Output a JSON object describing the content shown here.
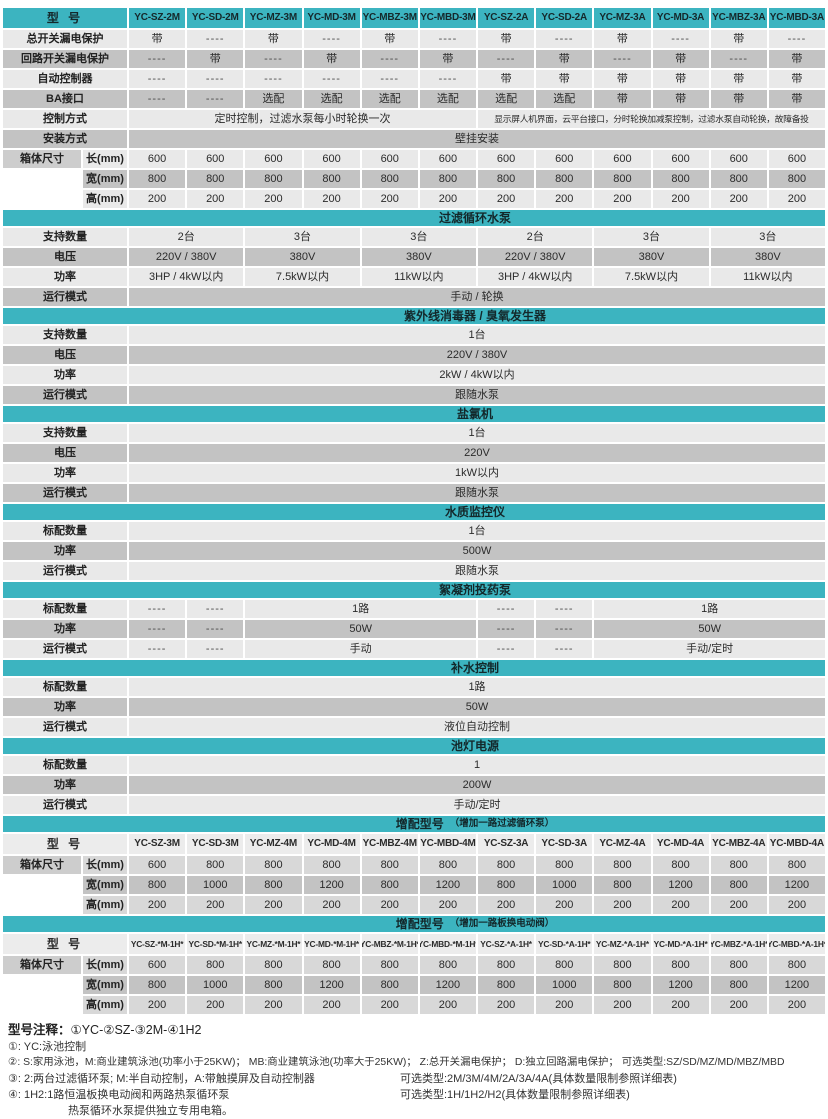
{
  "colors": {
    "teal": "#3cb4c0",
    "row_light": "#e9e9e9",
    "row_dark": "#c3c3c3",
    "row_mid": "#d8d8d8",
    "header_light": "#ececec",
    "group_label": "#cdcdcd",
    "text": "#2b2b2b"
  },
  "blocks": [
    {
      "type": "table",
      "header": {
        "style": "teal",
        "label": "型 号",
        "models": [
          "YC-SZ-2M",
          "YC-SD-2M",
          "YC-MZ-3M",
          "YC-MD-3M",
          "YC-MBZ-3M",
          "YC-MBD-3M",
          "YC-SZ-2A",
          "YC-SD-2A",
          "YC-MZ-3A",
          "YC-MD-3A",
          "YC-MBZ-3A",
          "YC-MBD-3A"
        ]
      },
      "rows": [
        {
          "label": "总开关漏电保护",
          "sh": "L",
          "vals": [
            "带",
            "----",
            "带",
            "----",
            "带",
            "----",
            "带",
            "----",
            "带",
            "----",
            "带",
            "----"
          ]
        },
        {
          "label": "回路开关漏电保护",
          "sh": "D",
          "vals": [
            "----",
            "带",
            "----",
            "带",
            "----",
            "带",
            "----",
            "带",
            "----",
            "带",
            "----",
            "带"
          ]
        },
        {
          "label": "自动控制器",
          "sh": "L",
          "vals": [
            "----",
            "----",
            "----",
            "----",
            "----",
            "----",
            "带",
            "带",
            "带",
            "带",
            "带",
            "带"
          ]
        },
        {
          "label": "BA接口",
          "sh": "D",
          "vals": [
            "----",
            "----",
            "选配",
            "选配",
            "选配",
            "选配",
            "选配",
            "选配",
            "带",
            "带",
            "带",
            "带"
          ]
        },
        {
          "label": "控制方式",
          "sh": "L",
          "cells": [
            {
              "t": "定时控制，过滤水泵每小时轮换一次",
              "s": 6
            },
            {
              "t": "显示屏人机界面，云平台接口，分时轮换加减泵控制，过滤水泵自动轮换，故障备投",
              "s": 6,
              "f": "small"
            }
          ]
        },
        {
          "label": "安装方式",
          "sh": "D",
          "cells": [
            {
              "t": "壁挂安装",
              "s": 12
            }
          ]
        },
        {
          "group": "箱体尺寸",
          "grows": 3,
          "sub": "长(mm)",
          "sh": "L",
          "vals": [
            "600",
            "600",
            "600",
            "600",
            "600",
            "600",
            "600",
            "600",
            "600",
            "600",
            "600",
            "600"
          ]
        },
        {
          "sub": "宽(mm)",
          "sh": "D",
          "vals": [
            "800",
            "800",
            "800",
            "800",
            "800",
            "800",
            "800",
            "800",
            "800",
            "800",
            "800",
            "800"
          ]
        },
        {
          "sub": "高(mm)",
          "sh": "L",
          "vals": [
            "200",
            "200",
            "200",
            "200",
            "200",
            "200",
            "200",
            "200",
            "200",
            "200",
            "200",
            "200"
          ]
        }
      ]
    },
    {
      "type": "band",
      "title": "过滤循环水泵",
      "note": ""
    },
    {
      "type": "table",
      "rows": [
        {
          "label": "支持数量",
          "sh": "L",
          "cells": [
            {
              "t": "2台",
              "s": 2
            },
            {
              "t": "3台",
              "s": 2
            },
            {
              "t": "3台",
              "s": 2
            },
            {
              "t": "2台",
              "s": 2
            },
            {
              "t": "3台",
              "s": 2
            },
            {
              "t": "3台",
              "s": 2
            }
          ]
        },
        {
          "label": "电压",
          "sh": "D",
          "cells": [
            {
              "t": "220V / 380V",
              "s": 2
            },
            {
              "t": "380V",
              "s": 2
            },
            {
              "t": "380V",
              "s": 2
            },
            {
              "t": "220V / 380V",
              "s": 2
            },
            {
              "t": "380V",
              "s": 2
            },
            {
              "t": "380V",
              "s": 2
            }
          ]
        },
        {
          "label": "功率",
          "sh": "L",
          "cells": [
            {
              "t": "3HP / 4kW以内",
              "s": 2
            },
            {
              "t": "7.5kW以内",
              "s": 2
            },
            {
              "t": "11kW以内",
              "s": 2
            },
            {
              "t": "3HP / 4kW以内",
              "s": 2
            },
            {
              "t": "7.5kW以内",
              "s": 2
            },
            {
              "t": "11kW以内",
              "s": 2
            }
          ]
        },
        {
          "label": "运行模式",
          "sh": "D",
          "cells": [
            {
              "t": "手动 / 轮换",
              "s": 12
            }
          ]
        }
      ]
    },
    {
      "type": "band",
      "title": "紫外线消毒器 / 臭氧发生器",
      "note": ""
    },
    {
      "type": "table",
      "rows": [
        {
          "label": "支持数量",
          "sh": "L",
          "cells": [
            {
              "t": "1台",
              "s": 12
            }
          ]
        },
        {
          "label": "电压",
          "sh": "D",
          "cells": [
            {
              "t": "220V / 380V",
              "s": 12
            }
          ]
        },
        {
          "label": "功率",
          "sh": "L",
          "cells": [
            {
              "t": "2kW / 4kW以内",
              "s": 12
            }
          ]
        },
        {
          "label": "运行模式",
          "sh": "D",
          "cells": [
            {
              "t": "跟随水泵",
              "s": 12
            }
          ]
        }
      ]
    },
    {
      "type": "band",
      "title": "盐氯机",
      "note": ""
    },
    {
      "type": "table",
      "rows": [
        {
          "label": "支持数量",
          "sh": "L",
          "cells": [
            {
              "t": "1台",
              "s": 12
            }
          ]
        },
        {
          "label": "电压",
          "sh": "D",
          "cells": [
            {
              "t": "220V",
              "s": 12
            }
          ]
        },
        {
          "label": "功率",
          "sh": "L",
          "cells": [
            {
              "t": "1kW以内",
              "s": 12
            }
          ]
        },
        {
          "label": "运行模式",
          "sh": "D",
          "cells": [
            {
              "t": "跟随水泵",
              "s": 12
            }
          ]
        }
      ]
    },
    {
      "type": "band",
      "title": "水质监控仪",
      "note": ""
    },
    {
      "type": "table",
      "rows": [
        {
          "label": "标配数量",
          "sh": "L",
          "cells": [
            {
              "t": "1台",
              "s": 12
            }
          ]
        },
        {
          "label": "功率",
          "sh": "D",
          "cells": [
            {
              "t": "500W",
              "s": 12
            }
          ]
        },
        {
          "label": "运行模式",
          "sh": "L",
          "cells": [
            {
              "t": "跟随水泵",
              "s": 12
            }
          ]
        }
      ]
    },
    {
      "type": "band",
      "title": "絮凝剂投药泵",
      "note": ""
    },
    {
      "type": "table",
      "rows": [
        {
          "label": "标配数量",
          "sh": "L",
          "cells": [
            {
              "t": "----"
            },
            {
              "t": "----"
            },
            {
              "t": "1路",
              "s": 4
            },
            {
              "t": "----"
            },
            {
              "t": "----"
            },
            {
              "t": "1路",
              "s": 4
            }
          ]
        },
        {
          "label": "功率",
          "sh": "D",
          "cells": [
            {
              "t": "----"
            },
            {
              "t": "----"
            },
            {
              "t": "50W",
              "s": 4
            },
            {
              "t": "----"
            },
            {
              "t": "----"
            },
            {
              "t": "50W",
              "s": 4
            }
          ]
        },
        {
          "label": "运行模式",
          "sh": "L",
          "cells": [
            {
              "t": "----"
            },
            {
              "t": "----"
            },
            {
              "t": "手动",
              "s": 4
            },
            {
              "t": "----"
            },
            {
              "t": "----"
            },
            {
              "t": "手动/定时",
              "s": 4
            }
          ]
        }
      ]
    },
    {
      "type": "band",
      "title": "补水控制",
      "note": ""
    },
    {
      "type": "table",
      "rows": [
        {
          "label": "标配数量",
          "sh": "L",
          "cells": [
            {
              "t": "1路",
              "s": 12
            }
          ]
        },
        {
          "label": "功率",
          "sh": "D",
          "cells": [
            {
              "t": "50W",
              "s": 12
            }
          ]
        },
        {
          "label": "运行模式",
          "sh": "L",
          "cells": [
            {
              "t": "液位自动控制",
              "s": 12
            }
          ]
        }
      ]
    },
    {
      "type": "band",
      "title": "池灯电源",
      "note": ""
    },
    {
      "type": "table",
      "rows": [
        {
          "label": "标配数量",
          "sh": "L",
          "cells": [
            {
              "t": "1",
              "s": 12
            }
          ]
        },
        {
          "label": "功率",
          "sh": "D",
          "cells": [
            {
              "t": "200W",
              "s": 12
            }
          ]
        },
        {
          "label": "运行模式",
          "sh": "L",
          "cells": [
            {
              "t": "手动/定时",
              "s": 12
            }
          ]
        }
      ]
    },
    {
      "type": "band",
      "title": "增配型号",
      "note": "（增加一路过滤循环泵）"
    },
    {
      "type": "table",
      "header": {
        "style": "plain",
        "label": "型 号",
        "models": [
          "YC-SZ-3M",
          "YC-SD-3M",
          "YC-MZ-4M",
          "YC-MD-4M",
          "YC-MBZ-4M",
          "YC-MBD-4M",
          "YC-SZ-3A",
          "YC-SD-3A",
          "YC-MZ-4A",
          "YC-MD-4A",
          "YC-MBZ-4A",
          "YC-MBD-4A"
        ]
      },
      "rows": [
        {
          "group": "箱体尺寸",
          "grows": 3,
          "sub": "长(mm)",
          "sh": "M",
          "vals": [
            "600",
            "800",
            "800",
            "800",
            "800",
            "800",
            "800",
            "800",
            "800",
            "800",
            "800",
            "800"
          ]
        },
        {
          "sub": "宽(mm)",
          "sh": "D",
          "vals": [
            "800",
            "1000",
            "800",
            "1200",
            "800",
            "1200",
            "800",
            "1000",
            "800",
            "1200",
            "800",
            "1200"
          ]
        },
        {
          "sub": "高(mm)",
          "sh": "M",
          "vals": [
            "200",
            "200",
            "200",
            "200",
            "200",
            "200",
            "200",
            "200",
            "200",
            "200",
            "200",
            "200"
          ]
        }
      ]
    },
    {
      "type": "band",
      "title": "增配型号",
      "note": "（增加一路板换电动阀）"
    },
    {
      "type": "table",
      "header": {
        "style": "plain",
        "size": "sm",
        "label": "型 号",
        "models": [
          "YC-SZ-*M-1H*",
          "YC-SD-*M-1H*",
          "YC-MZ-*M-1H*",
          "YC-MD-*M-1H*",
          "YC-MBZ-*M-1H*",
          "YC-MBD-*M-1H*",
          "YC-SZ-*A-1H*",
          "YC-SD-*A-1H*",
          "YC-MZ-*A-1H*",
          "YC-MD-*A-1H*",
          "YC-MBZ-*A-1H*",
          "YC-MBD-*A-1H*"
        ]
      },
      "rows": [
        {
          "group": "箱体尺寸",
          "grows": 3,
          "sub": "长(mm)",
          "sh": "M",
          "vals": [
            "600",
            "800",
            "800",
            "800",
            "800",
            "800",
            "800",
            "800",
            "800",
            "800",
            "800",
            "800"
          ]
        },
        {
          "sub": "宽(mm)",
          "sh": "D",
          "vals": [
            "800",
            "1000",
            "800",
            "1200",
            "800",
            "1200",
            "800",
            "1000",
            "800",
            "1200",
            "800",
            "1200"
          ]
        },
        {
          "sub": "高(mm)",
          "sh": "M",
          "vals": [
            "200",
            "200",
            "200",
            "200",
            "200",
            "200",
            "200",
            "200",
            "200",
            "200",
            "200",
            "200"
          ]
        }
      ]
    }
  ],
  "notes": {
    "title_bold": "型号注释：",
    "title_rest": "①YC-②SZ-③2M-④1H2",
    "lines": [
      {
        "left": "①: YC:泳池控制",
        "right": "",
        "style": ""
      },
      {
        "left": "②: S:家用泳池，M:商业建筑泳池(功率小于25KW)； MB:商业建筑泳池(功率大于25KW)； Z:总开关漏电保护； D:独立回路漏电保护； 可选类型:SZ/SD/MZ/MD/MBZ/MBD",
        "right": "",
        "style": "wide"
      },
      {
        "left": "③: 2:两台过滤循环泵; M:半自动控制，A:带触摸屏及自动控制器",
        "right": "可选类型:2M/3M/4M/2A/3A/4A(具体数量限制参照详细表)",
        "style": ""
      },
      {
        "left": "④: 1H2:1路恒温板换电动阀和两路热泵循环泵",
        "right": "可选类型:1H/1H2/H2(具体数量限制参照详细表)",
        "style": ""
      },
      {
        "left": "热泵循环水泵提供独立专用电箱。",
        "right": "",
        "style": "indent"
      }
    ]
  }
}
